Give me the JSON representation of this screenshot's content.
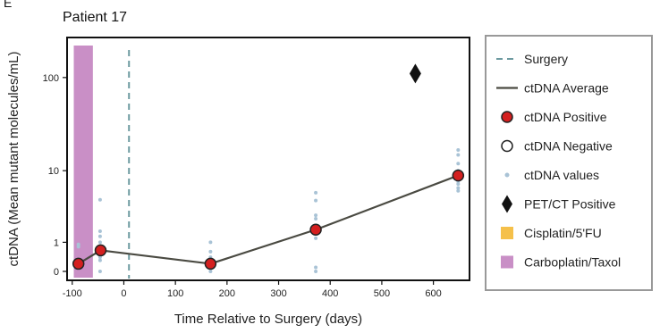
{
  "panel_letter": "E",
  "chart_data": {
    "type": "scatter",
    "title": "Patient 17",
    "xlabel": "Time Relative to Surgery (days)",
    "ylabel": "ctDNA (Mean mutant molecules/mL)",
    "xlim": [
      -110,
      670
    ],
    "x_ticks": [
      -100,
      0,
      100,
      200,
      300,
      400,
      500,
      600
    ],
    "x_tick_labels": [
      "-100",
      "0",
      "100",
      "200",
      "300",
      "400",
      "500",
      "600"
    ],
    "yscale": "symlog",
    "ylim": [
      0,
      250
    ],
    "y_ticks": [
      0,
      1,
      10,
      100
    ],
    "y_tick_labels": [
      "0",
      "1",
      "10",
      "100"
    ],
    "grid": false,
    "legend_position": "right, outside plot",
    "colors": {
      "average_line": "#4a4a42",
      "positive_fill": "#d41f1f",
      "values_dots": "#a9c3d6",
      "surgery_line": "#6d9aa0",
      "pet_marker": "#111111",
      "cisplatin": "#f5c04a",
      "carboplatin": "#c98fc6"
    },
    "surgery_day": 10,
    "treatment_spans": [
      {
        "name": "Carboplatin/Taxol",
        "x_start": -97,
        "x_end": -60
      }
    ],
    "pet_ct_positive": [
      {
        "x": 565,
        "y": 110
      }
    ],
    "ctdna_average": {
      "x": [
        -88,
        -45,
        168,
        372,
        648
      ],
      "y": [
        0.2,
        0.65,
        0.2,
        1.7,
        8.8
      ]
    },
    "ctdna_positive": {
      "x": [
        -88,
        -45,
        168,
        372,
        648
      ],
      "y": [
        0.2,
        0.65,
        0.2,
        1.7,
        8.8
      ]
    },
    "ctdna_negative": {
      "x": [],
      "y": []
    },
    "ctdna_values": {
      "x": [
        -88,
        -88,
        -88,
        -46,
        -46,
        -46,
        -46,
        -46,
        -46,
        -46,
        -46,
        168,
        168,
        168,
        168,
        168,
        372,
        372,
        372,
        372,
        372,
        372,
        372,
        372,
        648,
        648,
        648,
        648,
        648,
        648,
        648,
        648,
        648,
        648
      ],
      "y": [
        0.8,
        0.9,
        0.2,
        4.5,
        1.6,
        1.3,
        1.0,
        0.7,
        0.4,
        0.3,
        0.0,
        1.0,
        0.6,
        0.4,
        0.3,
        0.0,
        5.5,
        4.4,
        2.8,
        2.5,
        1.7,
        1.2,
        0.1,
        0.0,
        17,
        15,
        12,
        10,
        9.5,
        8.5,
        7.5,
        7.0,
        6.3,
        5.8
      ]
    },
    "legend": [
      {
        "key": "surgery",
        "label": "Surgery",
        "symbol": "dashed-line"
      },
      {
        "key": "average",
        "label": "ctDNA Average",
        "symbol": "solid-line"
      },
      {
        "key": "positive",
        "label": "ctDNA Positive",
        "symbol": "red-circle"
      },
      {
        "key": "negative",
        "label": "ctDNA Negative",
        "symbol": "open-circle"
      },
      {
        "key": "values",
        "label": "ctDNA values",
        "symbol": "small-dot"
      },
      {
        "key": "pet",
        "label": "PET/CT Positive",
        "symbol": "diamond"
      },
      {
        "key": "cisplatin",
        "label": "Cisplatin/5'FU",
        "symbol": "square"
      },
      {
        "key": "carboplatin",
        "label": "Carboplatin/Taxol",
        "symbol": "square"
      }
    ]
  }
}
